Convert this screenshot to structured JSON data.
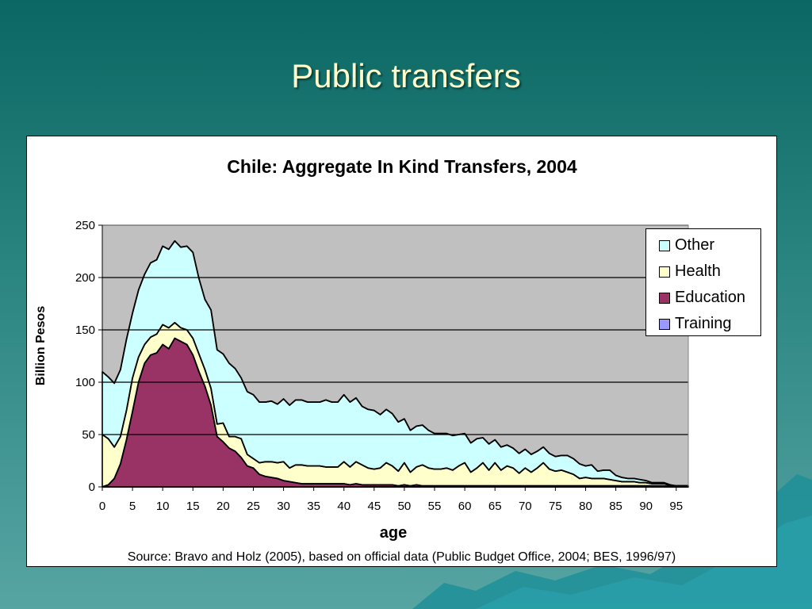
{
  "slide": {
    "title": "Public transfers"
  },
  "chart_data": {
    "type": "area",
    "stacked": true,
    "title": "Chile: Aggregate In Kind Transfers, 2004",
    "xlabel": "age",
    "ylabel": "Billion Pesos",
    "xlim": [
      0,
      97
    ],
    "ylim": [
      0,
      250
    ],
    "xticks": [
      0,
      5,
      10,
      15,
      20,
      25,
      30,
      35,
      40,
      45,
      50,
      55,
      60,
      65,
      70,
      75,
      80,
      85,
      90,
      95
    ],
    "yticks": [
      0,
      50,
      100,
      150,
      200,
      250
    ],
    "grid": true,
    "legend_position": "top-right",
    "x": [
      0,
      1,
      2,
      3,
      4,
      5,
      6,
      7,
      8,
      9,
      10,
      11,
      12,
      13,
      14,
      15,
      16,
      17,
      18,
      19,
      20,
      21,
      22,
      23,
      24,
      25,
      26,
      27,
      28,
      29,
      30,
      31,
      32,
      33,
      34,
      35,
      36,
      37,
      38,
      39,
      40,
      41,
      42,
      43,
      44,
      45,
      46,
      47,
      48,
      49,
      50,
      51,
      52,
      53,
      54,
      55,
      56,
      57,
      58,
      59,
      60,
      61,
      62,
      63,
      64,
      65,
      66,
      67,
      68,
      69,
      70,
      71,
      72,
      73,
      74,
      75,
      76,
      77,
      78,
      79,
      80,
      81,
      82,
      83,
      84,
      85,
      86,
      87,
      88,
      89,
      90,
      91,
      92,
      93,
      94,
      95,
      96,
      97
    ],
    "series": [
      {
        "name": "Training",
        "color": "#9999ff",
        "values": [
          0,
          0,
          0,
          0,
          0,
          0,
          0,
          0,
          0,
          0,
          0,
          0,
          0,
          0,
          0,
          0,
          0,
          0,
          0,
          0,
          0,
          0,
          0,
          0,
          0,
          0,
          0,
          0,
          0,
          0,
          0,
          0,
          0,
          0,
          0,
          0,
          0,
          0,
          0,
          0,
          0,
          0,
          0,
          0,
          0,
          0,
          0,
          0,
          0,
          0,
          0,
          0,
          0,
          0,
          0,
          0,
          0,
          0,
          0,
          0,
          0,
          0,
          0,
          0,
          0,
          0,
          0,
          0,
          0,
          0,
          0,
          0,
          0,
          0,
          0,
          0,
          0,
          0,
          0,
          0,
          0,
          0,
          0,
          0,
          0,
          0,
          0,
          0,
          0,
          0,
          0,
          0,
          0,
          0,
          0,
          0,
          0,
          0
        ]
      },
      {
        "name": "Education",
        "color": "#993366",
        "values": [
          0,
          2,
          8,
          22,
          45,
          72,
          100,
          118,
          126,
          128,
          136,
          132,
          142,
          139,
          136,
          126,
          110,
          96,
          78,
          48,
          43,
          37,
          34,
          28,
          20,
          18,
          12,
          10,
          9,
          8,
          6,
          5,
          4,
          3,
          3,
          3,
          3,
          3,
          3,
          3,
          3,
          2,
          3,
          2,
          2,
          2,
          2,
          2,
          2,
          1,
          2,
          1,
          2,
          1,
          1,
          1,
          1,
          1,
          1,
          1,
          1,
          1,
          1,
          1,
          1,
          1,
          1,
          1,
          1,
          1,
          1,
          1,
          1,
          1,
          1,
          1,
          1,
          1,
          1,
          1,
          1,
          1,
          1,
          1,
          1,
          1,
          1,
          1,
          1,
          1,
          1,
          1,
          1,
          1,
          0,
          0,
          0,
          0
        ]
      },
      {
        "name": "Health",
        "color": "#ffffcc",
        "values": [
          50,
          44,
          30,
          26,
          28,
          32,
          24,
          18,
          17,
          18,
          19,
          20,
          15,
          13,
          14,
          16,
          17,
          16,
          16,
          12,
          18,
          11,
          14,
          18,
          11,
          9,
          11,
          14,
          15,
          15,
          18,
          13,
          17,
          18,
          17,
          17,
          17,
          16,
          16,
          16,
          21,
          17,
          21,
          19,
          16,
          15,
          16,
          21,
          18,
          14,
          21,
          13,
          17,
          20,
          17,
          16,
          16,
          17,
          15,
          19,
          22,
          13,
          17,
          22,
          15,
          22,
          15,
          19,
          17,
          12,
          17,
          13,
          17,
          22,
          16,
          14,
          15,
          13,
          11,
          7,
          8,
          7,
          7,
          7,
          6,
          5,
          4,
          4,
          4,
          3,
          3,
          2,
          2,
          2,
          1,
          1,
          1,
          1
        ]
      },
      {
        "name": "Other",
        "color": "#ccffff",
        "values": [
          60,
          59,
          61,
          64,
          68,
          62,
          64,
          67,
          71,
          71,
          75,
          75,
          78,
          77,
          80,
          82,
          72,
          67,
          75,
          71,
          66,
          70,
          65,
          58,
          60,
          61,
          58,
          57,
          58,
          56,
          60,
          60,
          62,
          62,
          61,
          61,
          61,
          64,
          62,
          62,
          64,
          62,
          61,
          56,
          56,
          56,
          51,
          51,
          50,
          47,
          42,
          40,
          39,
          38,
          36,
          34,
          34,
          33,
          33,
          30,
          28,
          28,
          28,
          24,
          25,
          22,
          22,
          20,
          19,
          19,
          18,
          17,
          16,
          15,
          15,
          14,
          14,
          16,
          15,
          14,
          11,
          13,
          7,
          8,
          9,
          5,
          4,
          3,
          3,
          3,
          2,
          1,
          1,
          1,
          1,
          0,
          0,
          0
        ]
      }
    ],
    "source": "Source: Bravo and Holz (2005), based on official data (Public Budget Office, 2004; BES, 1996/97)"
  }
}
